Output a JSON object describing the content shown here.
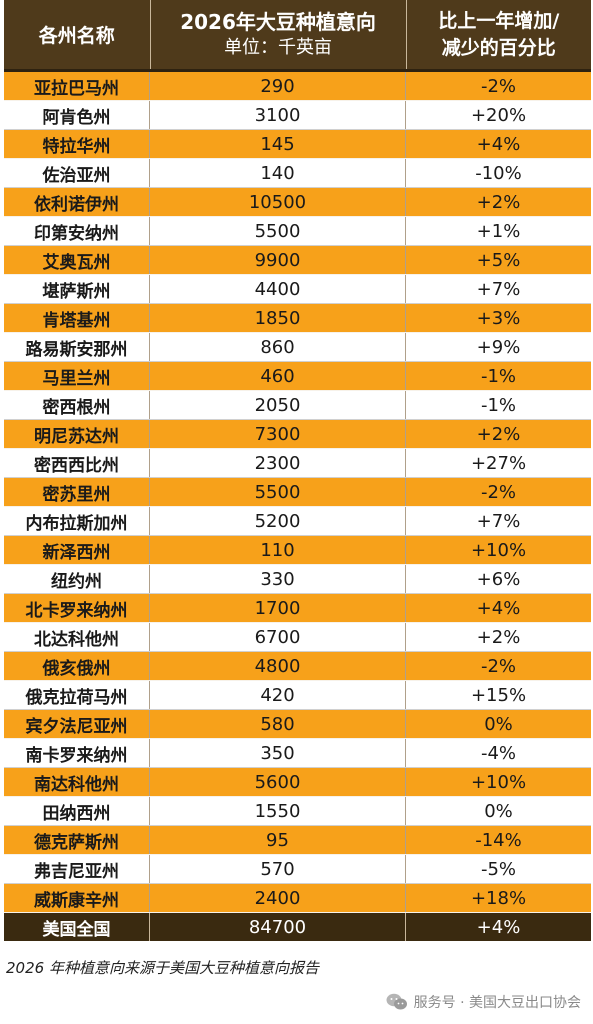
{
  "header": {
    "col1": "各州名称",
    "col2_title": "2026年大豆种植意向",
    "col2_unit": "单位：千英亩",
    "col3_line1": "比上一年增加/",
    "col3_line2": "减少的百分比"
  },
  "rows": [
    {
      "state": "亚拉巴马州",
      "acres": "290",
      "change": "-2%"
    },
    {
      "state": "阿肯色州",
      "acres": "3100",
      "change": "+20%"
    },
    {
      "state": "特拉华州",
      "acres": "145",
      "change": "+4%"
    },
    {
      "state": "佐治亚州",
      "acres": "140",
      "change": "-10%"
    },
    {
      "state": "依利诺伊州",
      "acres": "10500",
      "change": "+2%"
    },
    {
      "state": "印第安纳州",
      "acres": "5500",
      "change": "+1%"
    },
    {
      "state": "艾奥瓦州",
      "acres": "9900",
      "change": "+5%"
    },
    {
      "state": "堪萨斯州",
      "acres": "4400",
      "change": "+7%"
    },
    {
      "state": "肯塔基州",
      "acres": "1850",
      "change": "+3%"
    },
    {
      "state": "路易斯安那州",
      "acres": "860",
      "change": "+9%"
    },
    {
      "state": "马里兰州",
      "acres": "460",
      "change": "-1%"
    },
    {
      "state": "密西根州",
      "acres": "2050",
      "change": "-1%"
    },
    {
      "state": "明尼苏达州",
      "acres": "7300",
      "change": "+2%"
    },
    {
      "state": "密西西比州",
      "acres": "2300",
      "change": "+27%"
    },
    {
      "state": "密苏里州",
      "acres": "5500",
      "change": "-2%"
    },
    {
      "state": "内布拉斯加州",
      "acres": "5200",
      "change": "+7%"
    },
    {
      "state": "新泽西州",
      "acres": "110",
      "change": "+10%"
    },
    {
      "state": "纽约州",
      "acres": "330",
      "change": "+6%"
    },
    {
      "state": "北卡罗来纳州",
      "acres": "1700",
      "change": "+4%"
    },
    {
      "state": "北达科他州",
      "acres": "6700",
      "change": "+2%"
    },
    {
      "state": "俄亥俄州",
      "acres": "4800",
      "change": "-2%"
    },
    {
      "state": "俄克拉荷马州",
      "acres": "420",
      "change": "+15%"
    },
    {
      "state": "宾夕法尼亚州",
      "acres": "580",
      "change": "0%"
    },
    {
      "state": "南卡罗来纳州",
      "acres": "350",
      "change": "-4%"
    },
    {
      "state": "南达科他州",
      "acres": "5600",
      "change": "+10%"
    },
    {
      "state": "田纳西州",
      "acres": "1550",
      "change": "0%"
    },
    {
      "state": "德克萨斯州",
      "acres": "95",
      "change": "-14%"
    },
    {
      "state": "弗吉尼亚州",
      "acres": "570",
      "change": "-5%"
    },
    {
      "state": "威斯康辛州",
      "acres": "2400",
      "change": "+18%"
    }
  ],
  "total": {
    "state": "美国全国",
    "acres": "84700",
    "change": "+4%"
  },
  "footnote": "2026 年种植意向来源于美国大豆种植意向报告",
  "watermark": {
    "text": "服务号 · 美国大豆出口协会",
    "icon": "wechat-icon"
  },
  "colors": {
    "header_bg": "#4f3a1b",
    "accent_row": "#f7a11a",
    "total_bg": "#3a2a10"
  }
}
